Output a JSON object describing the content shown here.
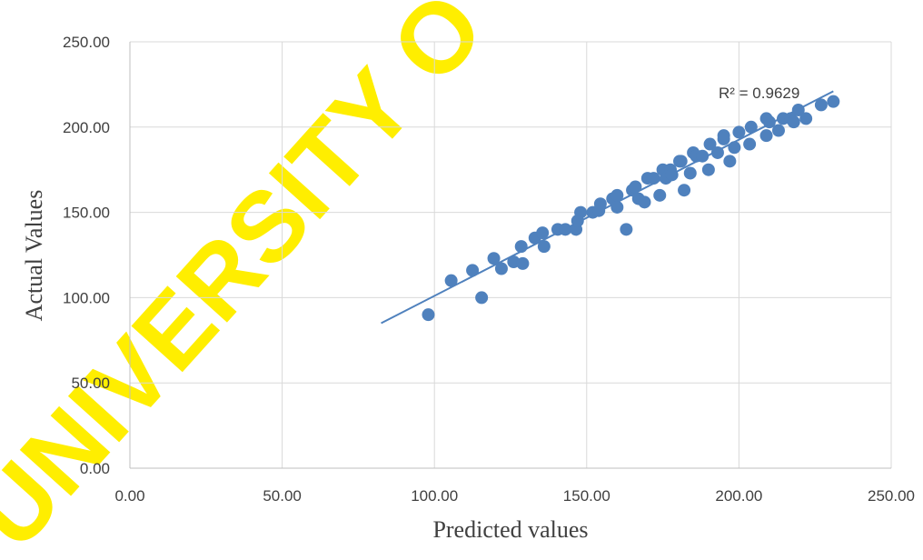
{
  "chart_data": {
    "type": "scatter",
    "xlabel": "Predicted values",
    "ylabel": "Actual Values",
    "xlim": [
      0,
      250
    ],
    "ylim": [
      0,
      250
    ],
    "xticks": [
      "0.00",
      "50.00",
      "100.00",
      "150.00",
      "200.00",
      "250.00"
    ],
    "yticks": [
      "0.00",
      "50.00",
      "100.00",
      "150.00",
      "200.00",
      "250.00"
    ],
    "grid": true,
    "legend": "none",
    "marker_color": "#4F81BD",
    "series": [
      {
        "x": [
          98.0,
          105.5,
          112.5,
          115.5,
          119.5,
          122.0,
          126.0,
          128.5,
          129.0,
          133.0,
          135.5,
          136.0,
          140.5,
          143.0,
          146.5,
          147.0,
          148.0,
          152.0,
          154.0,
          154.5,
          158.5,
          160.0,
          160.0,
          163.0,
          165.0,
          166.0,
          167.0,
          169.0,
          170.0,
          172.0,
          174.0,
          175.0,
          176.0,
          177.5,
          178.0,
          180.5,
          182.0,
          184.0,
          185.0,
          186.0,
          188.0,
          190.0,
          190.5,
          193.0,
          195.0,
          195.0,
          197.0,
          198.5,
          200.0,
          203.5,
          204.0,
          209.0,
          210.0,
          213.0,
          214.5,
          217.0,
          218.0,
          219.5,
          222.0,
          227.0,
          231.0,
          209.0,
          181.0
        ],
        "y": [
          90,
          110,
          116,
          100,
          123,
          117,
          121,
          130,
          120,
          135,
          138,
          130,
          140,
          140,
          140,
          145,
          150,
          150,
          151,
          155,
          158,
          160,
          153,
          140,
          163,
          165,
          158,
          156,
          170,
          170,
          160,
          175,
          170,
          175,
          172,
          180,
          163,
          173,
          185,
          183,
          183,
          175,
          190,
          185,
          195,
          193,
          180,
          188,
          197,
          190,
          200,
          195,
          203,
          198,
          205,
          205,
          203,
          210,
          205,
          213,
          215,
          205,
          180
        ]
      }
    ],
    "trendline": {
      "x": [
        82.5,
        231.0
      ],
      "y": [
        85,
        221
      ]
    },
    "annotation": "R² = 0.9629"
  },
  "watermark": {
    "text": "UNIVERSITY O",
    "color": "#FFEE00"
  }
}
